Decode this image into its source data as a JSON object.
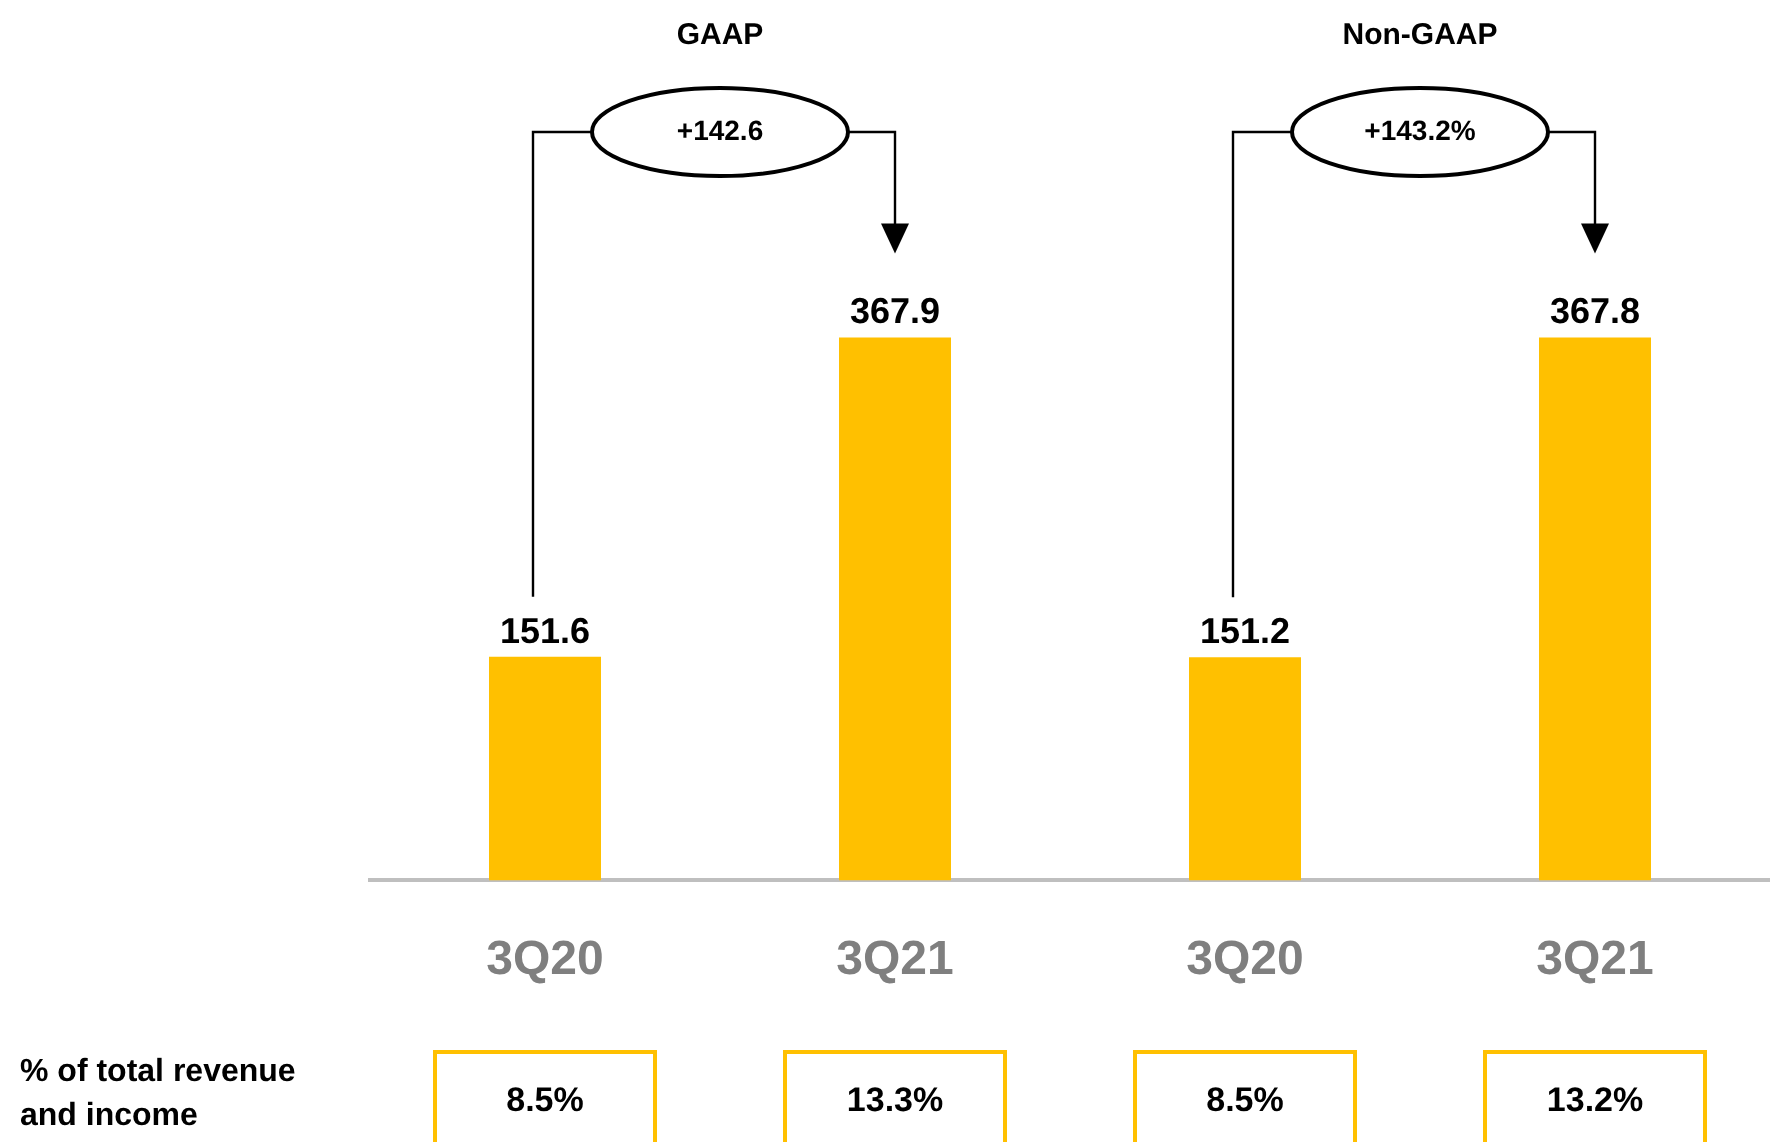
{
  "chart_data": {
    "type": "bar",
    "categories": [
      "3Q20",
      "3Q21",
      "3Q20",
      "3Q21"
    ],
    "values": [
      151.6,
      367.9,
      151.2,
      367.8
    ],
    "color": "#ffc000",
    "data_labels": true,
    "tick_labels": "x",
    "grid": false,
    "legend": false,
    "annotations": [
      "GAAP",
      "+142.6",
      "Non-GAAP",
      "+143.2%",
      "% of total revenue and income",
      "8.5%",
      "13.3%",
      "8.5%",
      "13.2%"
    ]
  }
}
